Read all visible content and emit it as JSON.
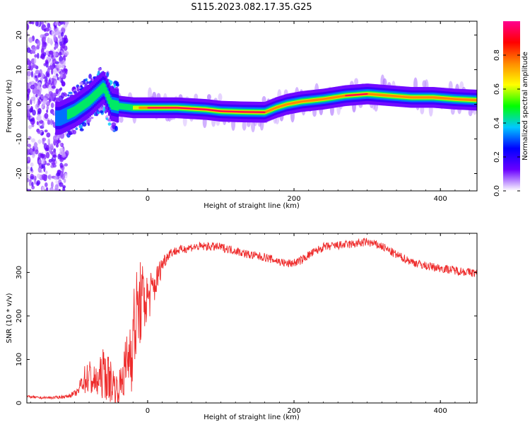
{
  "title": "S115.2023.082.17.35.G25",
  "chart_data": [
    {
      "type": "heatmap",
      "xlabel": "Height of straight line (km)",
      "ylabel": "Frequency (Hz)",
      "xlim": [
        -165,
        450
      ],
      "ylim": [
        -25,
        24
      ],
      "xticks": [
        0,
        200,
        400
      ],
      "yticks": [
        20,
        10,
        0,
        -10,
        -20
      ],
      "colorbar": {
        "label": "Normalized spectral amplitude",
        "range": [
          0,
          1
        ],
        "ticks": [
          "0.0",
          "0.2",
          "0.4",
          "0.6",
          "0.8"
        ],
        "colors": [
          "#ffffff",
          "#6a00ff",
          "#0000ff",
          "#00c8ff",
          "#00ff00",
          "#ffff00",
          "#ff8c00",
          "#ff0000",
          "#ff0090"
        ]
      },
      "ridge": {
        "x": [
          -120,
          -100,
          -80,
          -70,
          -60,
          -50,
          -40,
          -20,
          0,
          40,
          80,
          100,
          130,
          160,
          175,
          190,
          210,
          240,
          270,
          300,
          330,
          360,
          390,
          420,
          450
        ],
        "y": [
          -4,
          -2,
          1,
          3,
          5,
          0,
          -0.5,
          -1,
          -1,
          -1,
          -1.5,
          -2,
          -2.2,
          -2.3,
          -1,
          0,
          0.8,
          1.5,
          2.5,
          3,
          2.5,
          2,
          2,
          1.5,
          1.2
        ],
        "amplitude": [
          0.35,
          0.45,
          0.5,
          0.45,
          0.45,
          0.45,
          0.5,
          0.55,
          0.9,
          0.9,
          0.9,
          0.9,
          0.9,
          0.9,
          0.85,
          0.85,
          0.85,
          0.85,
          0.9,
          0.9,
          0.85,
          0.85,
          0.85,
          0.85,
          0.8
        ]
      }
    },
    {
      "type": "line",
      "xlabel": "Height of straight line (km)",
      "ylabel": "SNR (10 * v/v)",
      "xlim": [
        -165,
        450
      ],
      "ylim": [
        0,
        390
      ],
      "xticks": [
        0,
        200,
        400
      ],
      "yticks": [
        0,
        100,
        200,
        300
      ],
      "color": "#ee2b2b",
      "x": [
        -165,
        -150,
        -130,
        -110,
        -95,
        -90,
        -80,
        -70,
        -60,
        -50,
        -40,
        -30,
        -20,
        -15,
        -10,
        0,
        10,
        20,
        30,
        40,
        60,
        80,
        100,
        120,
        140,
        160,
        180,
        190,
        200,
        210,
        220,
        240,
        260,
        280,
        300,
        320,
        330,
        340,
        360,
        380,
        400,
        420,
        450
      ],
      "y": [
        15,
        12,
        12,
        15,
        25,
        50,
        60,
        45,
        70,
        50,
        30,
        80,
        150,
        200,
        230,
        240,
        270,
        320,
        345,
        350,
        358,
        360,
        358,
        350,
        340,
        335,
        325,
        320,
        322,
        328,
        340,
        358,
        362,
        365,
        370,
        360,
        350,
        340,
        325,
        315,
        310,
        305,
        298
      ],
      "noise": [
        3,
        3,
        3,
        4,
        8,
        25,
        45,
        35,
        60,
        50,
        30,
        70,
        120,
        110,
        100,
        60,
        40,
        20,
        12,
        10,
        10,
        10,
        10,
        10,
        10,
        10,
        10,
        10,
        10,
        10,
        10,
        10,
        10,
        10,
        10,
        10,
        10,
        10,
        10,
        10,
        10,
        10,
        10
      ]
    }
  ]
}
